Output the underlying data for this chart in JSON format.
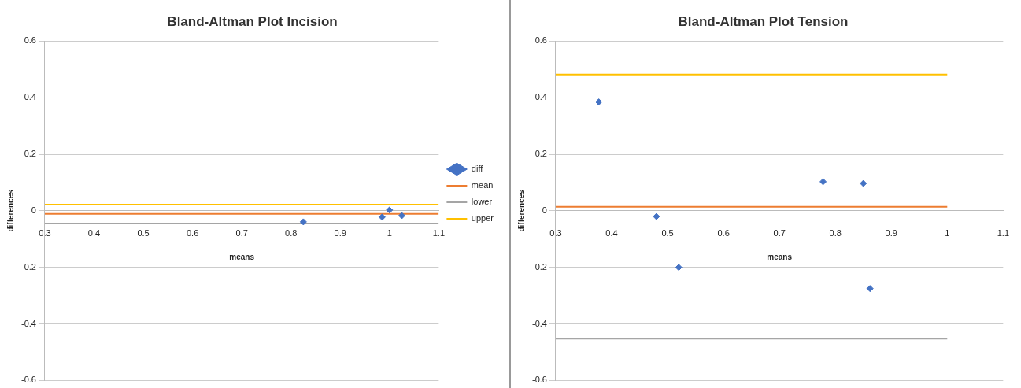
{
  "chart_data": [
    {
      "type": "scatter",
      "title": "Bland-Altman Plot Incision",
      "xlabel": "means",
      "ylabel": "differences",
      "xlim": [
        0.3,
        1.1
      ],
      "xticks": [
        0.3,
        0.4,
        0.5,
        0.6,
        0.7,
        0.8,
        0.9,
        1,
        1.1
      ],
      "ylim": [
        -0.6,
        0.6
      ],
      "yticks": [
        -0.6,
        -0.4,
        -0.2,
        0,
        0.2,
        0.4,
        0.6
      ],
      "grid": "y",
      "legend": "right",
      "series": [
        {
          "name": "diff",
          "marker": "diamond",
          "color": "#4472c4",
          "x": [
            0.825,
            0.985,
            1.0,
            1.025
          ],
          "values": [
            -0.039,
            -0.022,
            0.003,
            -0.017
          ]
        },
        {
          "name": "mean",
          "type": "line",
          "color": "#ed7d31",
          "x": [
            0.3,
            1.1
          ],
          "values": [
            -0.011,
            -0.011
          ]
        },
        {
          "name": "lower",
          "type": "line",
          "color": "#a5a5a5",
          "x": [
            0.3,
            1.1
          ],
          "values": [
            -0.045,
            -0.045
          ]
        },
        {
          "name": "upper",
          "type": "line",
          "color": "#ffc000",
          "x": [
            0.3,
            1.1
          ],
          "values": [
            0.022,
            0.022
          ]
        }
      ]
    },
    {
      "type": "scatter",
      "title": "Bland-Altman Plot Tension",
      "xlabel": "means",
      "ylabel": "differences",
      "xlim": [
        0.3,
        1.1
      ],
      "xticks": [
        0.3,
        0.4,
        0.5,
        0.6,
        0.7,
        0.8,
        0.9,
        1,
        1.1
      ],
      "ylim": [
        -0.6,
        0.6
      ],
      "yticks": [
        -0.6,
        -0.4,
        -0.2,
        0,
        0.2,
        0.4,
        0.6
      ],
      "grid": "y",
      "series": [
        {
          "marker": "diamond",
          "color": "#4472c4",
          "x": [
            0.377,
            0.48,
            0.52,
            0.778,
            0.85,
            0.862
          ],
          "values": [
            0.385,
            -0.02,
            -0.2,
            0.103,
            0.097,
            -0.275
          ]
        },
        {
          "type": "line",
          "color": "#ed7d31",
          "x": [
            0.3,
            1.0
          ],
          "values": [
            0.014,
            0.014
          ]
        },
        {
          "type": "line",
          "color": "#a5a5a5",
          "x": [
            0.3,
            1.0
          ],
          "values": [
            -0.452,
            -0.452
          ]
        },
        {
          "type": "line",
          "color": "#ffc000",
          "x": [
            0.3,
            1.0
          ],
          "values": [
            0.482,
            0.482
          ]
        }
      ]
    }
  ]
}
